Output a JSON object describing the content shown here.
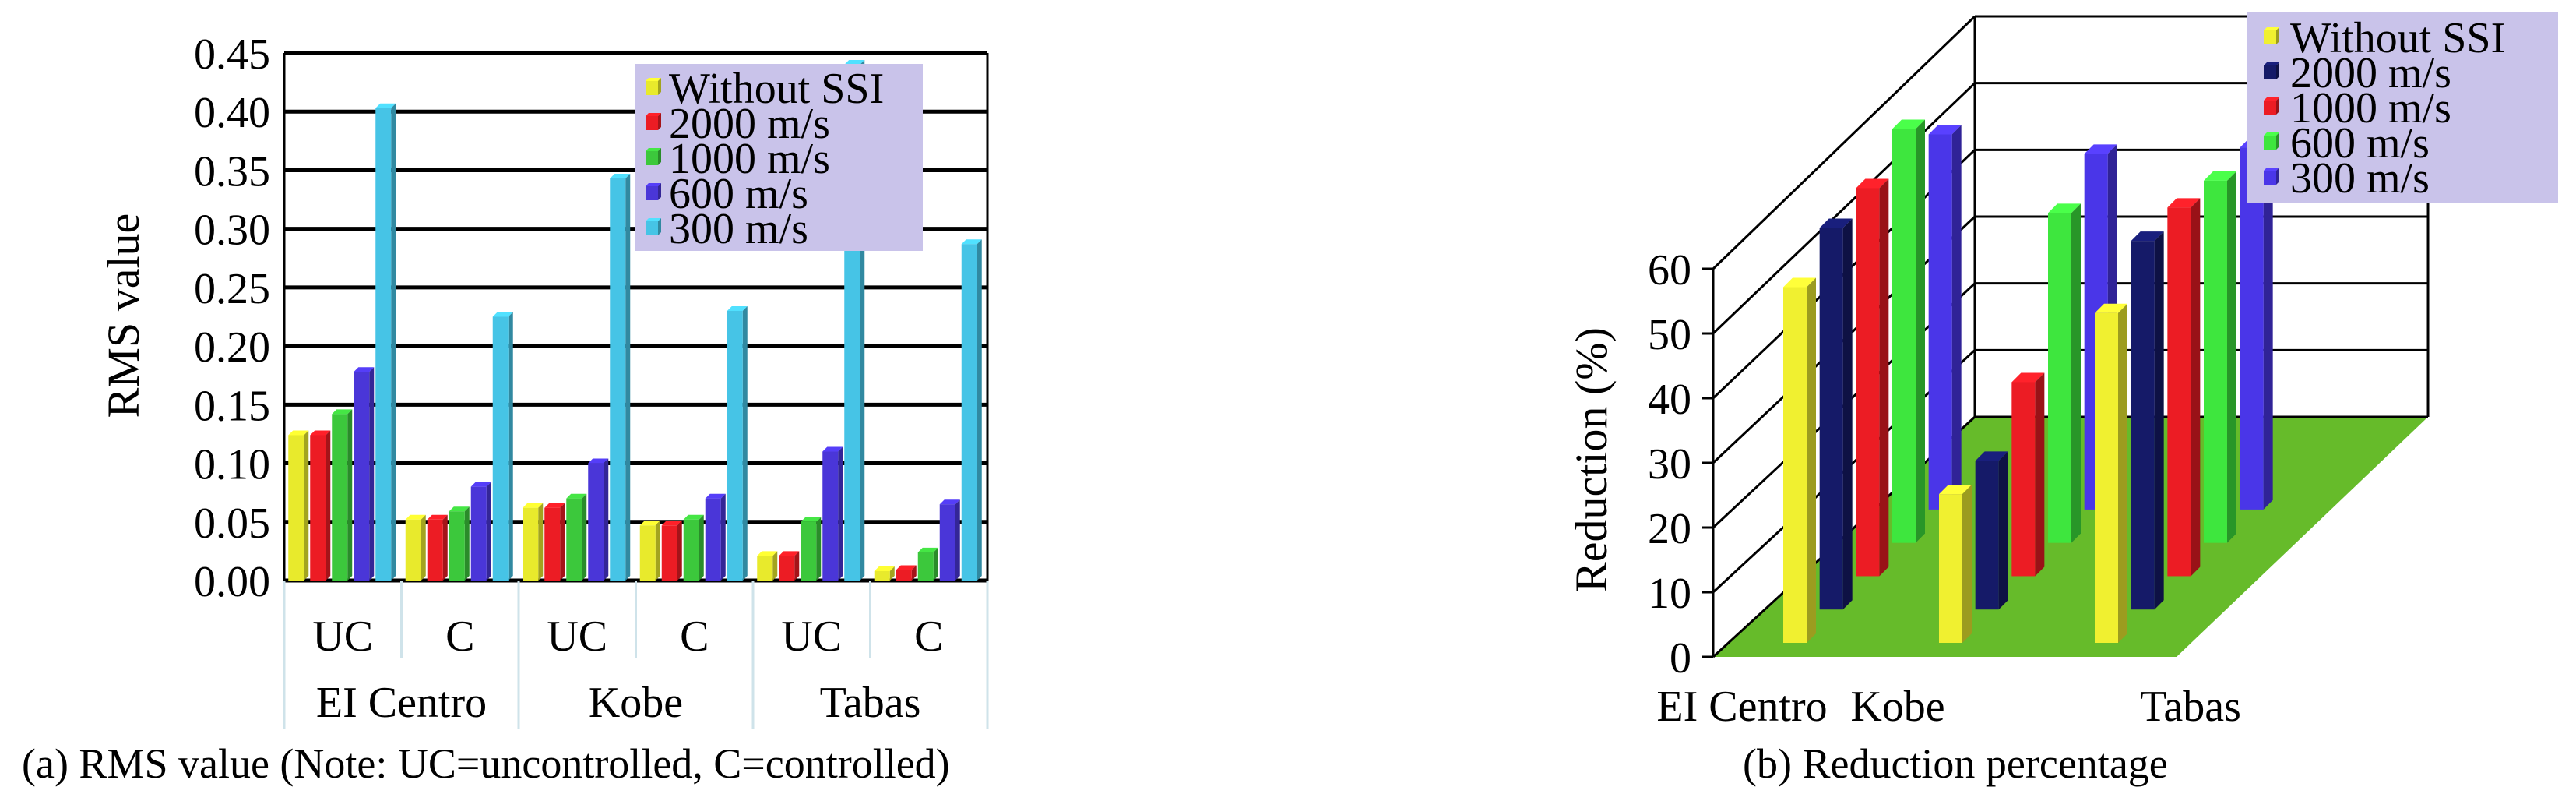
{
  "chart_data": [
    {
      "type": "bar",
      "ylabel": "RMS value",
      "ylim": [
        0,
        0.45
      ],
      "yticks": [
        "0.00",
        "0.05",
        "0.10",
        "0.15",
        "0.20",
        "0.25",
        "0.30",
        "0.35",
        "0.40",
        "0.45"
      ],
      "ytick_values": [
        0,
        0.05,
        0.1,
        0.15,
        0.2,
        0.25,
        0.3,
        0.35,
        0.4,
        0.45
      ],
      "grid": true,
      "legend_position": "top-right",
      "categories": [
        "UC",
        "C",
        "UC",
        "C",
        "UC",
        "C"
      ],
      "groups": [
        "EI Centro",
        "Kobe",
        "Tabas"
      ],
      "series": [
        {
          "name": "Without SSI",
          "color": "#e8ea2c",
          "values": [
            0.124,
            0.052,
            0.062,
            0.047,
            0.021,
            0.008
          ]
        },
        {
          "name": "2000 m/s",
          "color": "#ec1c24",
          "values": [
            0.124,
            0.052,
            0.062,
            0.047,
            0.021,
            0.009
          ]
        },
        {
          "name": "1000 m/s",
          "color": "#3cc83c",
          "values": [
            0.142,
            0.059,
            0.07,
            0.052,
            0.05,
            0.024
          ]
        },
        {
          "name": "600 m/s",
          "color": "#4a36d8",
          "values": [
            0.178,
            0.08,
            0.1,
            0.07,
            0.11,
            0.065
          ]
        },
        {
          "name": "300 m/s",
          "color": "#46c4e6",
          "values": [
            0.403,
            0.225,
            0.343,
            0.23,
            0.44,
            0.287
          ]
        }
      ],
      "caption": "(a) RMS value (Note: UC=uncontrolled, C=controlled)"
    },
    {
      "type": "bar",
      "ylabel": "Reduction (%)",
      "ylim": [
        0,
        60
      ],
      "yticks": [
        "0",
        "10",
        "20",
        "30",
        "40",
        "50",
        "60"
      ],
      "ytick_values": [
        0,
        10,
        20,
        30,
        40,
        50,
        60
      ],
      "grid": true,
      "legend_position": "top-right",
      "categories": [
        "EI Centro",
        "Kobe",
        "Tabas"
      ],
      "series": [
        {
          "name": "Without SSI",
          "color": "#f0f030",
          "values": [
            55,
            23,
            51
          ]
        },
        {
          "name": "2000 m/s",
          "color": "#151a68",
          "values": [
            59,
            23,
            57
          ]
        },
        {
          "name": "1000 m/s",
          "color": "#ec1c24",
          "values": [
            60,
            30,
            57
          ]
        },
        {
          "name": "600 m/s",
          "color": "#3ee63e",
          "values": [
            64,
            51,
            56
          ]
        },
        {
          "name": "300 m/s",
          "color": "#4a36e8",
          "values": [
            58,
            55,
            56
          ]
        }
      ],
      "caption": "(b) Reduction percentage"
    }
  ]
}
